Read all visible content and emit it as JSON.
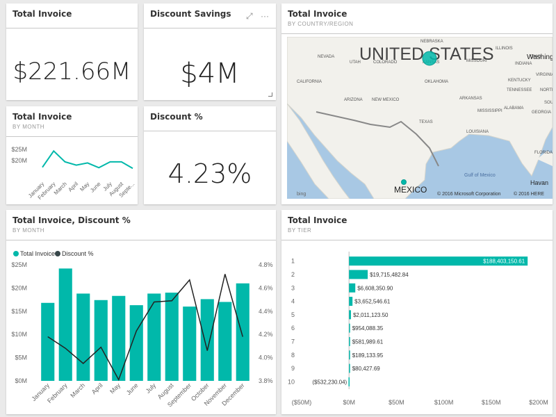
{
  "colors": {
    "teal": "#01b8aa",
    "dark": "#374649",
    "map_water": "#a8c8e4",
    "map_land": "#f2f1ec"
  },
  "tiles": {
    "total_invoice_card": {
      "title": "Total Invoice",
      "value": "$221.66M"
    },
    "discount_savings_card": {
      "title": "Discount Savings",
      "value": "$4M",
      "icons": [
        "expand-icon",
        "more-options-icon"
      ],
      "more": "···",
      "expand": "⤢"
    },
    "total_invoice_month": {
      "title": "Total Invoice",
      "subtitle": "BY MONTH"
    },
    "discount_pct_card": {
      "title": "Discount %",
      "value": "4.23%"
    },
    "map": {
      "title": "Total Invoice",
      "subtitle": "BY COUNTRY/REGION",
      "labels": {
        "us": "UNITED STATES",
        "mexico": "MEXICO",
        "washington": "Washing",
        "havana": "Havan",
        "gulf": "Gulf of Mexico",
        "bing": "bing",
        "copyright1": "© 2016 Microsoft Corporation",
        "copyright2": "© 2016 HERE",
        "states": [
          "NEBRASKA",
          "NEVADA",
          "UTAH",
          "COLORADO",
          "KANSAS",
          "CALIFORNIA",
          "ARIZONA",
          "NEW MEXICO",
          "OKLAHOMA",
          "TEXAS",
          "MISSOURI",
          "ILLINOIS",
          "INDIANA",
          "OHIO",
          "KENTUCKY",
          "TENNESSEE",
          "ARKANSAS",
          "MISSISSIPPI",
          "ALABAMA",
          "GEORGIA",
          "LOUISIANA",
          "VIRGINIA",
          "NORTH CAROLINA",
          "SOUTH CAROLINA",
          "FLORIDA"
        ]
      }
    },
    "combo": {
      "title": "Total Invoice, Discount %",
      "subtitle": "BY MONTH"
    },
    "tier": {
      "title": "Total Invoice",
      "subtitle": "BY TIER"
    }
  },
  "chart_data": [
    {
      "id": "small_line",
      "type": "line",
      "x": [
        "January",
        "February",
        "March",
        "April",
        "May",
        "June",
        "July",
        "August",
        "Septe..."
      ],
      "values": [
        16.5,
        24,
        19,
        17.5,
        18.5,
        16.3,
        19,
        19,
        16
      ],
      "yticks": [
        "$25M",
        "$20M"
      ],
      "ylim": [
        10,
        26
      ]
    },
    {
      "id": "combo",
      "type": "bar",
      "categories": [
        "January",
        "February",
        "March",
        "April",
        "May",
        "June",
        "July",
        "August",
        "September",
        "October",
        "November",
        "December"
      ],
      "series": [
        {
          "name": "Total Invoice",
          "type": "bar",
          "values": [
            16.8,
            24.2,
            18.8,
            17.4,
            18.3,
            16.3,
            18.8,
            19.0,
            16.0,
            17.6,
            17.0,
            21.0
          ]
        },
        {
          "name": "Discount %",
          "type": "line",
          "values": [
            4.18,
            4.08,
            3.95,
            4.09,
            3.81,
            4.23,
            4.48,
            4.49,
            4.67,
            4.06,
            4.72,
            4.18
          ]
        }
      ],
      "ylim": [
        0,
        25
      ],
      "yticks": [
        "$0M",
        "$5M",
        "$10M",
        "$15M",
        "$20M",
        "$25M"
      ],
      "y2lim": [
        3.8,
        4.8
      ],
      "y2ticks": [
        "3.8%",
        "4.0%",
        "4.2%",
        "4.4%",
        "4.6%",
        "4.8%"
      ],
      "legend": "top-left"
    },
    {
      "id": "tier",
      "type": "bar",
      "categories": [
        "1",
        "2",
        "3",
        "4",
        "5",
        "6",
        "7",
        "8",
        "9",
        "10"
      ],
      "values": [
        188403150.61,
        19715482.84,
        6608350.9,
        3652546.61,
        2011123.5,
        954088.35,
        581989.61,
        189133.95,
        80427.69,
        -532230.04
      ],
      "labels": [
        "$188,403,150.61",
        "$19,715,482.84",
        "$6,608,350.90",
        "$3,652,546.61",
        "$2,011,123.50",
        "$954,088.35",
        "$581,989.61",
        "$189,133.95",
        "$80,427.69",
        "($532,230.04)"
      ],
      "xlim": [
        -50000000,
        200000000
      ],
      "xticks": [
        "($50M)",
        "$0M",
        "$50M",
        "$100M",
        "$150M",
        "$200M"
      ]
    }
  ]
}
